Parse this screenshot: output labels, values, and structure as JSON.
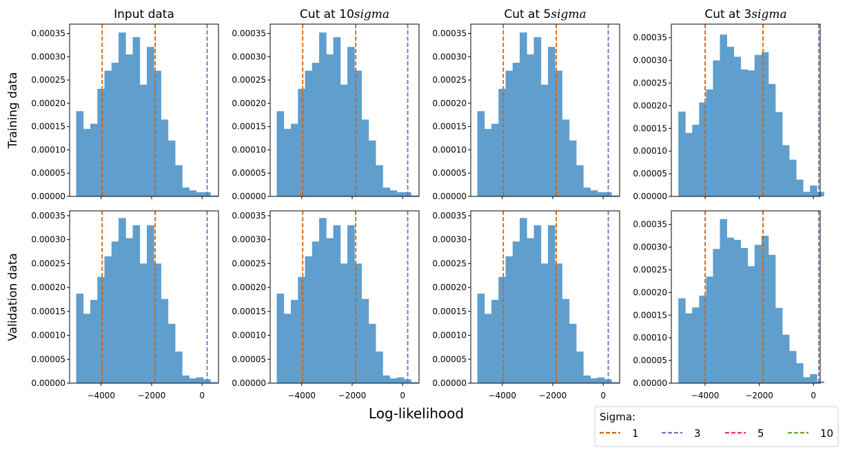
{
  "colors": {
    "bar": "#5f9ecd",
    "sigma1": "#d95f02",
    "sigma3": "#7570b3",
    "sigma5": "#e7298a",
    "sigma10": "#66a61e"
  },
  "figure": {
    "xlabel": "Log-likelihood",
    "row_labels": [
      "Training data",
      "Validation data"
    ],
    "legend": {
      "title": "Sigma:",
      "entries": [
        {
          "label": "1",
          "color": "#d95f02"
        },
        {
          "label": "3",
          "color": "#7570b3"
        },
        {
          "label": "5",
          "color": "#e7298a"
        },
        {
          "label": "10",
          "color": "#66a61e"
        }
      ]
    }
  },
  "chart_data": [
    {
      "type": "bar",
      "title": "Input data",
      "row": "Training data",
      "xlim": [
        -5250,
        650
      ],
      "ylim": [
        0,
        0.00037
      ],
      "xticks": [
        "−4000",
        "−2000",
        "0"
      ],
      "yticks": [
        "0.00000",
        "0.00005",
        "0.00010",
        "0.00015",
        "0.00020",
        "0.00025",
        "0.00030",
        "0.00035"
      ],
      "bin_start": -4990,
      "bin_width": 280,
      "values": [
        0.000183,
        0.000145,
        0.000156,
        0.000231,
        0.00027,
        0.000287,
        0.000352,
        0.000305,
        0.000342,
        0.00024,
        0.000321,
        0.00027,
        0.000165,
        0.00012,
        6.7e-05,
        1.9e-05,
        1.3e-05,
        9e-06,
        9e-06,
        2e-06
      ],
      "sigma_lines": [
        {
          "sigma": "1",
          "x": -3960
        },
        {
          "sigma": "1",
          "x": -1860
        },
        {
          "sigma": "3",
          "x": 200
        }
      ]
    },
    {
      "type": "bar",
      "title": "Cut at 10$sigma$",
      "row": "Training data",
      "xlim": [
        -5250,
        650
      ],
      "ylim": [
        0,
        0.00037
      ],
      "xticks": [
        "−4000",
        "−2000",
        "0"
      ],
      "yticks": [
        "0.00000",
        "0.00005",
        "0.00010",
        "0.00015",
        "0.00020",
        "0.00025",
        "0.00030",
        "0.00035"
      ],
      "bin_start": -4990,
      "bin_width": 280,
      "values": [
        0.000183,
        0.000145,
        0.000156,
        0.000231,
        0.00027,
        0.000287,
        0.000352,
        0.000305,
        0.000342,
        0.00024,
        0.000321,
        0.00027,
        0.000165,
        0.00012,
        6.7e-05,
        1.9e-05,
        1.3e-05,
        9e-06,
        9e-06,
        2e-06
      ],
      "sigma_lines": [
        {
          "sigma": "1",
          "x": -3960
        },
        {
          "sigma": "1",
          "x": -1860
        },
        {
          "sigma": "3",
          "x": 200
        }
      ]
    },
    {
      "type": "bar",
      "title": "Cut at 5$sigma$",
      "row": "Training data",
      "xlim": [
        -5250,
        650
      ],
      "ylim": [
        0,
        0.00037
      ],
      "xticks": [
        "−4000",
        "−2000",
        "0"
      ],
      "yticks": [
        "0.00000",
        "0.00005",
        "0.00010",
        "0.00015",
        "0.00020",
        "0.00025",
        "0.00030",
        "0.00035"
      ],
      "bin_start": -4990,
      "bin_width": 280,
      "values": [
        0.000183,
        0.000145,
        0.000156,
        0.000231,
        0.00027,
        0.000287,
        0.000352,
        0.000305,
        0.000342,
        0.00024,
        0.000321,
        0.00027,
        0.000165,
        0.00012,
        6.7e-05,
        1.9e-05,
        1.3e-05,
        9e-06,
        9e-06,
        2e-06
      ],
      "sigma_lines": [
        {
          "sigma": "1",
          "x": -3960
        },
        {
          "sigma": "1",
          "x": -1860
        },
        {
          "sigma": "3",
          "x": 200
        }
      ]
    },
    {
      "type": "bar",
      "title": "Cut at 3$sigma$",
      "row": "Training data",
      "xlim": [
        -5250,
        250
      ],
      "ylim": [
        0,
        0.00038
      ],
      "xticks": [
        "−4000",
        "−2000",
        "0"
      ],
      "yticks": [
        "0.00000",
        "0.00005",
        "0.00010",
        "0.00015",
        "0.00020",
        "0.00025",
        "0.00030",
        "0.00035"
      ],
      "bin_start": -4990,
      "bin_width": 256,
      "values": [
        0.000187,
        0.00014,
        0.000158,
        0.000207,
        0.000236,
        0.0003,
        0.000357,
        0.00033,
        0.000308,
        0.00028,
        0.000278,
        0.000312,
        0.000318,
        0.000248,
        0.000186,
        0.000113,
        8.1e-05,
        3.7e-05,
        1e-05,
        2.4e-05,
        1e-05
      ],
      "sigma_lines": [
        {
          "sigma": "1",
          "x": -4000
        },
        {
          "sigma": "1",
          "x": -1860
        },
        {
          "sigma": "3",
          "x": 200
        }
      ]
    },
    {
      "type": "bar",
      "title": "",
      "row": "Validation data",
      "xlim": [
        -5250,
        650
      ],
      "ylim": [
        0,
        0.00036
      ],
      "xticks": [
        "−4000",
        "−2000",
        "0"
      ],
      "yticks": [
        "0.00000",
        "0.00005",
        "0.00010",
        "0.00015",
        "0.00020",
        "0.00025",
        "0.00030",
        "0.00035"
      ],
      "bin_start": -4990,
      "bin_width": 280,
      "values": [
        0.000187,
        0.000145,
        0.000174,
        0.000222,
        0.000265,
        0.000296,
        0.000345,
        0.000303,
        0.00033,
        0.00025,
        0.00033,
        0.00025,
        0.000176,
        0.000124,
        6.6e-05,
        1.6e-05,
        1e-05,
        1.2e-05,
        8e-06,
        2e-06
      ],
      "sigma_lines": [
        {
          "sigma": "1",
          "x": -3960
        },
        {
          "sigma": "1",
          "x": -1860
        },
        {
          "sigma": "3",
          "x": 200
        }
      ]
    },
    {
      "type": "bar",
      "title": "",
      "row": "Validation data",
      "xlim": [
        -5250,
        650
      ],
      "ylim": [
        0,
        0.00036
      ],
      "xticks": [
        "−4000",
        "−2000",
        "0"
      ],
      "yticks": [
        "0.00000",
        "0.00005",
        "0.00010",
        "0.00015",
        "0.00020",
        "0.00025",
        "0.00030",
        "0.00035"
      ],
      "bin_start": -4990,
      "bin_width": 280,
      "values": [
        0.000187,
        0.000145,
        0.000174,
        0.000222,
        0.000265,
        0.000296,
        0.000345,
        0.000303,
        0.00033,
        0.00025,
        0.00033,
        0.00025,
        0.000176,
        0.000124,
        6.6e-05,
        1.6e-05,
        1e-05,
        1.2e-05,
        8e-06,
        2e-06
      ],
      "sigma_lines": [
        {
          "sigma": "1",
          "x": -3960
        },
        {
          "sigma": "1",
          "x": -1860
        },
        {
          "sigma": "3",
          "x": 200
        }
      ]
    },
    {
      "type": "bar",
      "title": "",
      "row": "Validation data",
      "xlim": [
        -5250,
        650
      ],
      "ylim": [
        0,
        0.00036
      ],
      "xticks": [
        "−4000",
        "−2000",
        "0"
      ],
      "yticks": [
        "0.00000",
        "0.00005",
        "0.00010",
        "0.00015",
        "0.00020",
        "0.00025",
        "0.00030",
        "0.00035"
      ],
      "bin_start": -4990,
      "bin_width": 280,
      "values": [
        0.000187,
        0.000145,
        0.000174,
        0.000222,
        0.000265,
        0.000296,
        0.000345,
        0.000303,
        0.00033,
        0.00025,
        0.00033,
        0.00025,
        0.000176,
        0.000124,
        6.6e-05,
        1.6e-05,
        1e-05,
        1.2e-05,
        8e-06,
        2e-06
      ],
      "sigma_lines": [
        {
          "sigma": "1",
          "x": -3960
        },
        {
          "sigma": "1",
          "x": -1860
        },
        {
          "sigma": "3",
          "x": 200
        }
      ]
    },
    {
      "type": "bar",
      "title": "",
      "row": "Validation data",
      "xlim": [
        -5250,
        250
      ],
      "ylim": [
        0,
        0.00038
      ],
      "xticks": [
        "−4000",
        "−2000",
        "0"
      ],
      "yticks": [
        "0.00000",
        "0.00005",
        "0.00010",
        "0.00015",
        "0.00020",
        "0.00025",
        "0.00030",
        "0.00035"
      ],
      "bin_start": -4990,
      "bin_width": 256,
      "values": [
        0.000187,
        0.000154,
        0.000167,
        0.000193,
        0.000235,
        0.000296,
        0.000362,
        0.000321,
        0.000316,
        0.000298,
        0.000258,
        0.000305,
        0.000325,
        0.000283,
        0.000166,
        0.000107,
        7.1e-05,
        4.4e-05,
        1.3e-05,
        2e-05,
        4e-06
      ],
      "sigma_lines": [
        {
          "sigma": "1",
          "x": -4000
        },
        {
          "sigma": "1",
          "x": -1860
        },
        {
          "sigma": "3",
          "x": 200
        }
      ]
    }
  ]
}
